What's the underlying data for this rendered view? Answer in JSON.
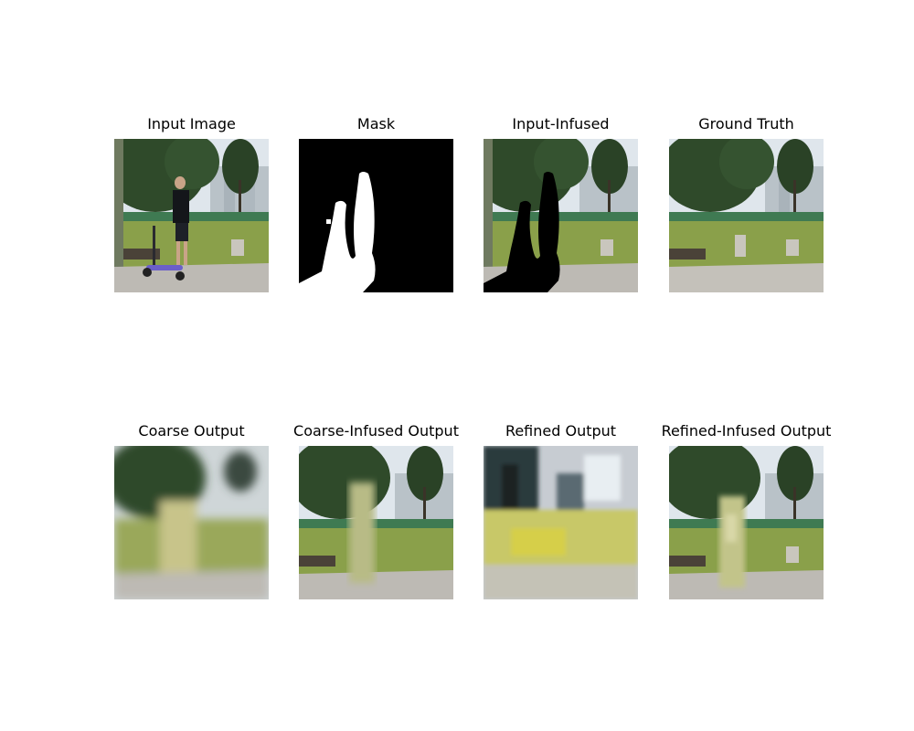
{
  "panels": [
    {
      "title": "Input Image"
    },
    {
      "title": "Mask"
    },
    {
      "title": "Input-Infused"
    },
    {
      "title": "Ground Truth"
    },
    {
      "title": "Coarse Output"
    },
    {
      "title": "Coarse-Infused Output"
    },
    {
      "title": "Refined Output"
    },
    {
      "title": "Refined-Infused Output"
    }
  ],
  "colors": {
    "sky": "#dfe6ec",
    "foliage": "#2f4a2a",
    "grass": "#8aa04a",
    "path": "#bdbab4",
    "mask_fg": "#ffffff",
    "mask_bg": "#000000",
    "scooter": "#6b5fc9"
  }
}
